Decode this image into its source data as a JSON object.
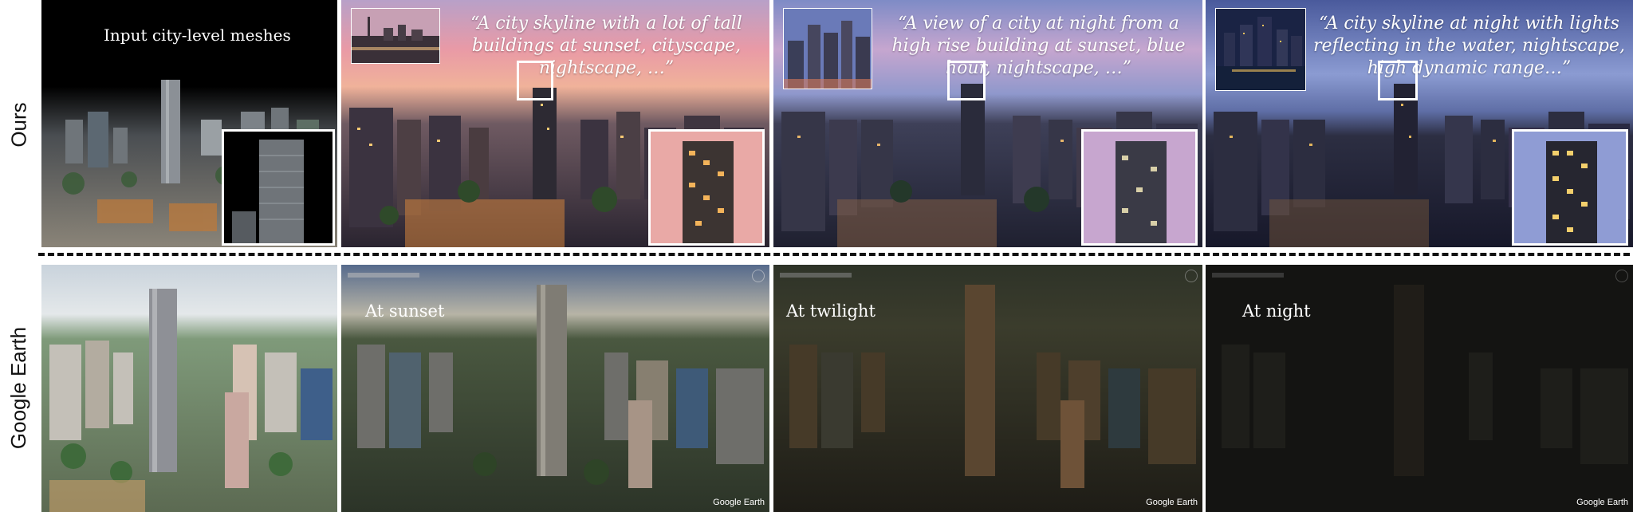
{
  "rows": {
    "top_label": "Ours",
    "bottom_label": "Google Earth"
  },
  "top_row": {
    "input_caption": "Input city-level meshes",
    "prompts": [
      {
        "line1": "“A city skyline with a lot of tall",
        "line2": "buildings at sunset, cityscape,",
        "line3": "nightscape, …”"
      },
      {
        "line1": "“A view of a city at night from a",
        "line2": "high rise building at sunset, blue",
        "line3": "hour, nightscape, …”"
      },
      {
        "line1": "“A city skyline at night with lights",
        "line2": "reflecting in the water, nightscape,",
        "line3": "high dynamic range…”"
      }
    ]
  },
  "bottom_row": {
    "captions": [
      "At sunset",
      "At twilight",
      "At night"
    ],
    "logo": "Google Earth"
  },
  "colors": {
    "sunset_sky": "#e99aa6",
    "blue_hour_sky": "#8f98cc",
    "night_sky": "#5f6ea6",
    "divider": "#111111"
  }
}
